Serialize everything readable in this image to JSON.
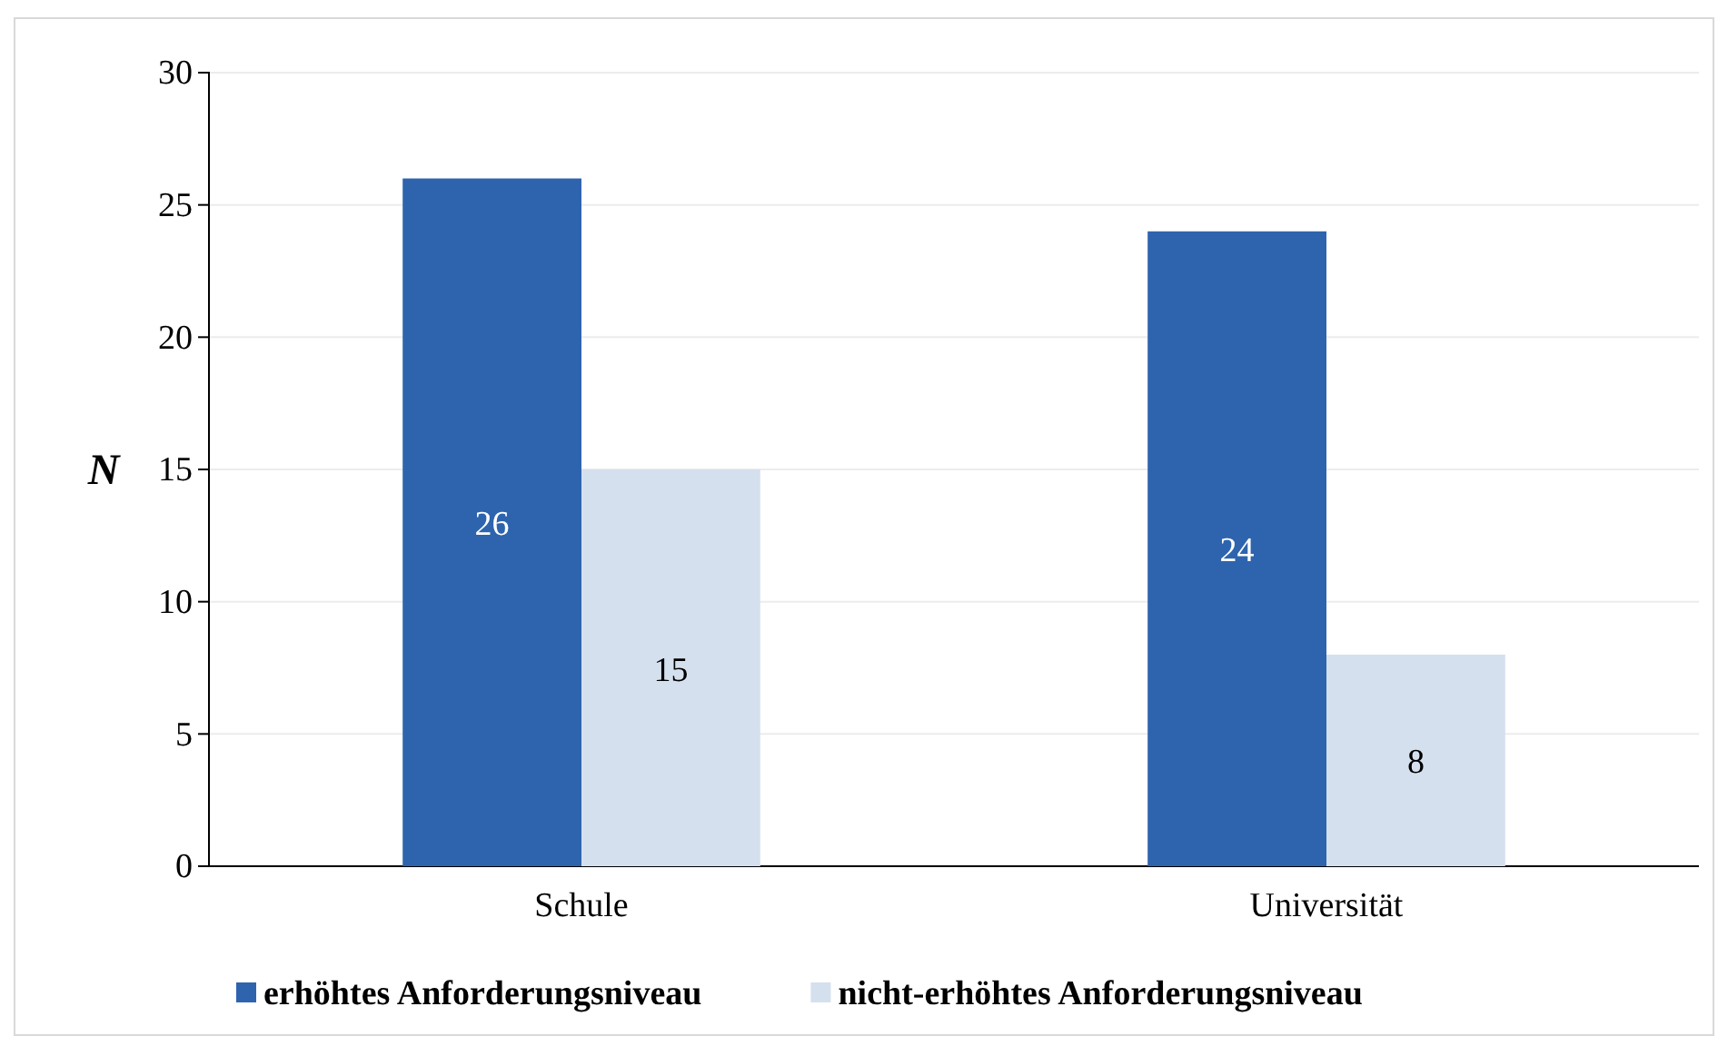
{
  "chart_data": {
    "type": "bar",
    "ylabel": "N",
    "categories": [
      "Schule",
      "Universität"
    ],
    "series": [
      {
        "name": "erhöhtes Anforderungsniveau",
        "color": "#2e64ae",
        "values": [
          26,
          24
        ]
      },
      {
        "name": "nicht-erhöhtes Anforderungsniveau",
        "color": "#d5e0ee",
        "values": [
          15,
          8
        ]
      }
    ],
    "ylim": [
      0,
      30
    ],
    "yticks": [
      0,
      5,
      10,
      15,
      20,
      25,
      30
    ],
    "grid": "y",
    "legend": "bottom",
    "data_labels": true
  }
}
